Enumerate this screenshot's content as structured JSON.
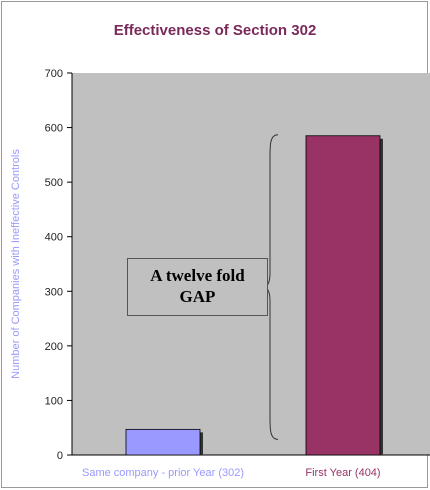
{
  "chart_data": {
    "type": "bar",
    "title": "Effectiveness of Section 302",
    "ylabel": "Number of Companies with Ineffective Controls",
    "xlabel": "",
    "categories": [
      "Same company - prior Year (302)",
      "First Year (404)"
    ],
    "values": [
      47,
      585
    ],
    "ylim": [
      0,
      700
    ],
    "yticks": [
      "0",
      "100",
      "200",
      "300",
      "400",
      "500",
      "600",
      "700"
    ],
    "grid": false,
    "legend": "none",
    "annotation": {
      "line1": "A twelve fold",
      "line2": "GAP"
    },
    "colors": {
      "plot_area": "#c0c0c0",
      "bars": [
        "#9999ff",
        "#993366"
      ],
      "ylabel": "#9999ff",
      "category_labels": [
        "#9999ff",
        "#993366"
      ],
      "title": "#7a2a5a"
    }
  }
}
